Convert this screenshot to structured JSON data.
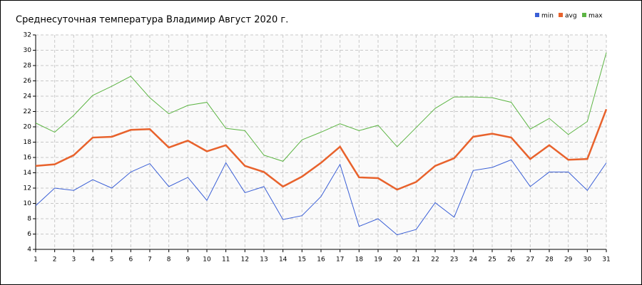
{
  "chart_data": {
    "type": "line",
    "title": "Среднесуточная температура Владимир  Август 2020 г.",
    "x": [
      1,
      2,
      3,
      4,
      5,
      6,
      7,
      8,
      9,
      10,
      11,
      12,
      13,
      14,
      15,
      16,
      17,
      18,
      19,
      20,
      21,
      22,
      23,
      24,
      25,
      26,
      27,
      28,
      29,
      30,
      31
    ],
    "xlim": [
      1,
      31
    ],
    "xticks": [
      1,
      2,
      3,
      4,
      5,
      6,
      7,
      8,
      9,
      10,
      11,
      12,
      13,
      14,
      15,
      16,
      17,
      18,
      19,
      20,
      21,
      22,
      23,
      24,
      25,
      26,
      27,
      28,
      29,
      30,
      31
    ],
    "ylim": [
      4,
      32
    ],
    "yticks": [
      4,
      6,
      8,
      10,
      12,
      14,
      16,
      18,
      20,
      22,
      24,
      26,
      28,
      30,
      32
    ],
    "grid": true,
    "legend": "top-right",
    "series": [
      {
        "name": "min",
        "color": "#3a5fd6",
        "values": [
          9.7,
          12,
          11.7,
          13.1,
          12,
          14.1,
          15.2,
          12.2,
          13.4,
          10.4,
          15.3,
          11.4,
          12.2,
          7.9,
          8.4,
          10.9,
          15.1,
          7,
          8,
          5.9,
          6.6,
          10.1,
          8.2,
          14.3,
          14.7,
          15.7,
          12.2,
          14.1,
          14.1,
          11.7,
          15.3
        ]
      },
      {
        "name": "avg",
        "color": "#e8622c",
        "values": [
          14.9,
          15.1,
          16.3,
          18.6,
          18.7,
          19.6,
          19.7,
          17.3,
          18.2,
          16.8,
          17.6,
          14.9,
          14.1,
          12.2,
          13.5,
          15.3,
          17.4,
          13.4,
          13.3,
          11.8,
          12.8,
          14.9,
          15.9,
          18.7,
          19.1,
          18.6,
          15.8,
          17.6,
          15.7,
          15.8,
          22.3
        ]
      },
      {
        "name": "max",
        "color": "#5db544",
        "values": [
          20.5,
          19.3,
          21.5,
          24.1,
          25.3,
          26.6,
          23.8,
          21.7,
          22.8,
          23.2,
          19.8,
          19.5,
          16.3,
          15.5,
          18.3,
          19.3,
          20.4,
          19.5,
          20.2,
          17.4,
          19.9,
          22.4,
          23.9,
          23.9,
          23.8,
          23.2,
          19.7,
          21.1,
          19,
          20.7,
          29.7
        ]
      }
    ]
  }
}
